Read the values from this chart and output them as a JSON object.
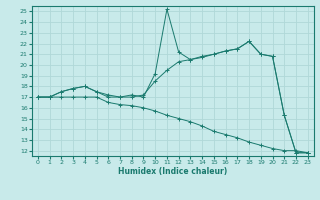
{
  "xlabel": "Humidex (Indice chaleur)",
  "ylabel": "",
  "xlim": [
    -0.5,
    23.5
  ],
  "ylim": [
    11.5,
    25.5
  ],
  "xticks": [
    0,
    1,
    2,
    3,
    4,
    5,
    6,
    7,
    8,
    9,
    10,
    11,
    12,
    13,
    14,
    15,
    16,
    17,
    18,
    19,
    20,
    21,
    22,
    23
  ],
  "yticks": [
    12,
    13,
    14,
    15,
    16,
    17,
    18,
    19,
    20,
    21,
    22,
    23,
    24,
    25
  ],
  "bg_color": "#c8eaea",
  "grid_color": "#b0d8d8",
  "line_color": "#1a7a6e",
  "line1_x": [
    0,
    1,
    2,
    3,
    4,
    5,
    6,
    7,
    8,
    9,
    10,
    11,
    12,
    13,
    14,
    15,
    16,
    17,
    18,
    19,
    20,
    21,
    22,
    23
  ],
  "line1_y": [
    17.0,
    17.0,
    17.5,
    17.8,
    18.0,
    17.5,
    17.0,
    17.0,
    17.2,
    17.0,
    19.2,
    25.2,
    21.2,
    20.5,
    20.8,
    21.0,
    21.3,
    21.5,
    22.2,
    21.0,
    20.8,
    15.3,
    11.8,
    11.8
  ],
  "line2_x": [
    0,
    1,
    2,
    3,
    4,
    5,
    6,
    7,
    8,
    9,
    10,
    11,
    12,
    13,
    14,
    15,
    16,
    17,
    18,
    19,
    20,
    21,
    22,
    23
  ],
  "line2_y": [
    17.0,
    17.0,
    17.5,
    17.8,
    18.0,
    17.5,
    17.2,
    17.0,
    17.0,
    17.2,
    18.5,
    19.5,
    20.3,
    20.5,
    20.7,
    21.0,
    21.3,
    21.5,
    22.2,
    21.0,
    20.8,
    15.3,
    11.8,
    11.8
  ],
  "line3_x": [
    0,
    1,
    2,
    3,
    4,
    5,
    6,
    7,
    8,
    9,
    10,
    11,
    12,
    13,
    14,
    15,
    16,
    17,
    18,
    19,
    20,
    21,
    22,
    23
  ],
  "line3_y": [
    17.0,
    17.0,
    17.0,
    17.0,
    17.0,
    17.0,
    16.5,
    16.3,
    16.2,
    16.0,
    15.7,
    15.3,
    15.0,
    14.7,
    14.3,
    13.8,
    13.5,
    13.2,
    12.8,
    12.5,
    12.2,
    12.0,
    12.0,
    11.8
  ]
}
